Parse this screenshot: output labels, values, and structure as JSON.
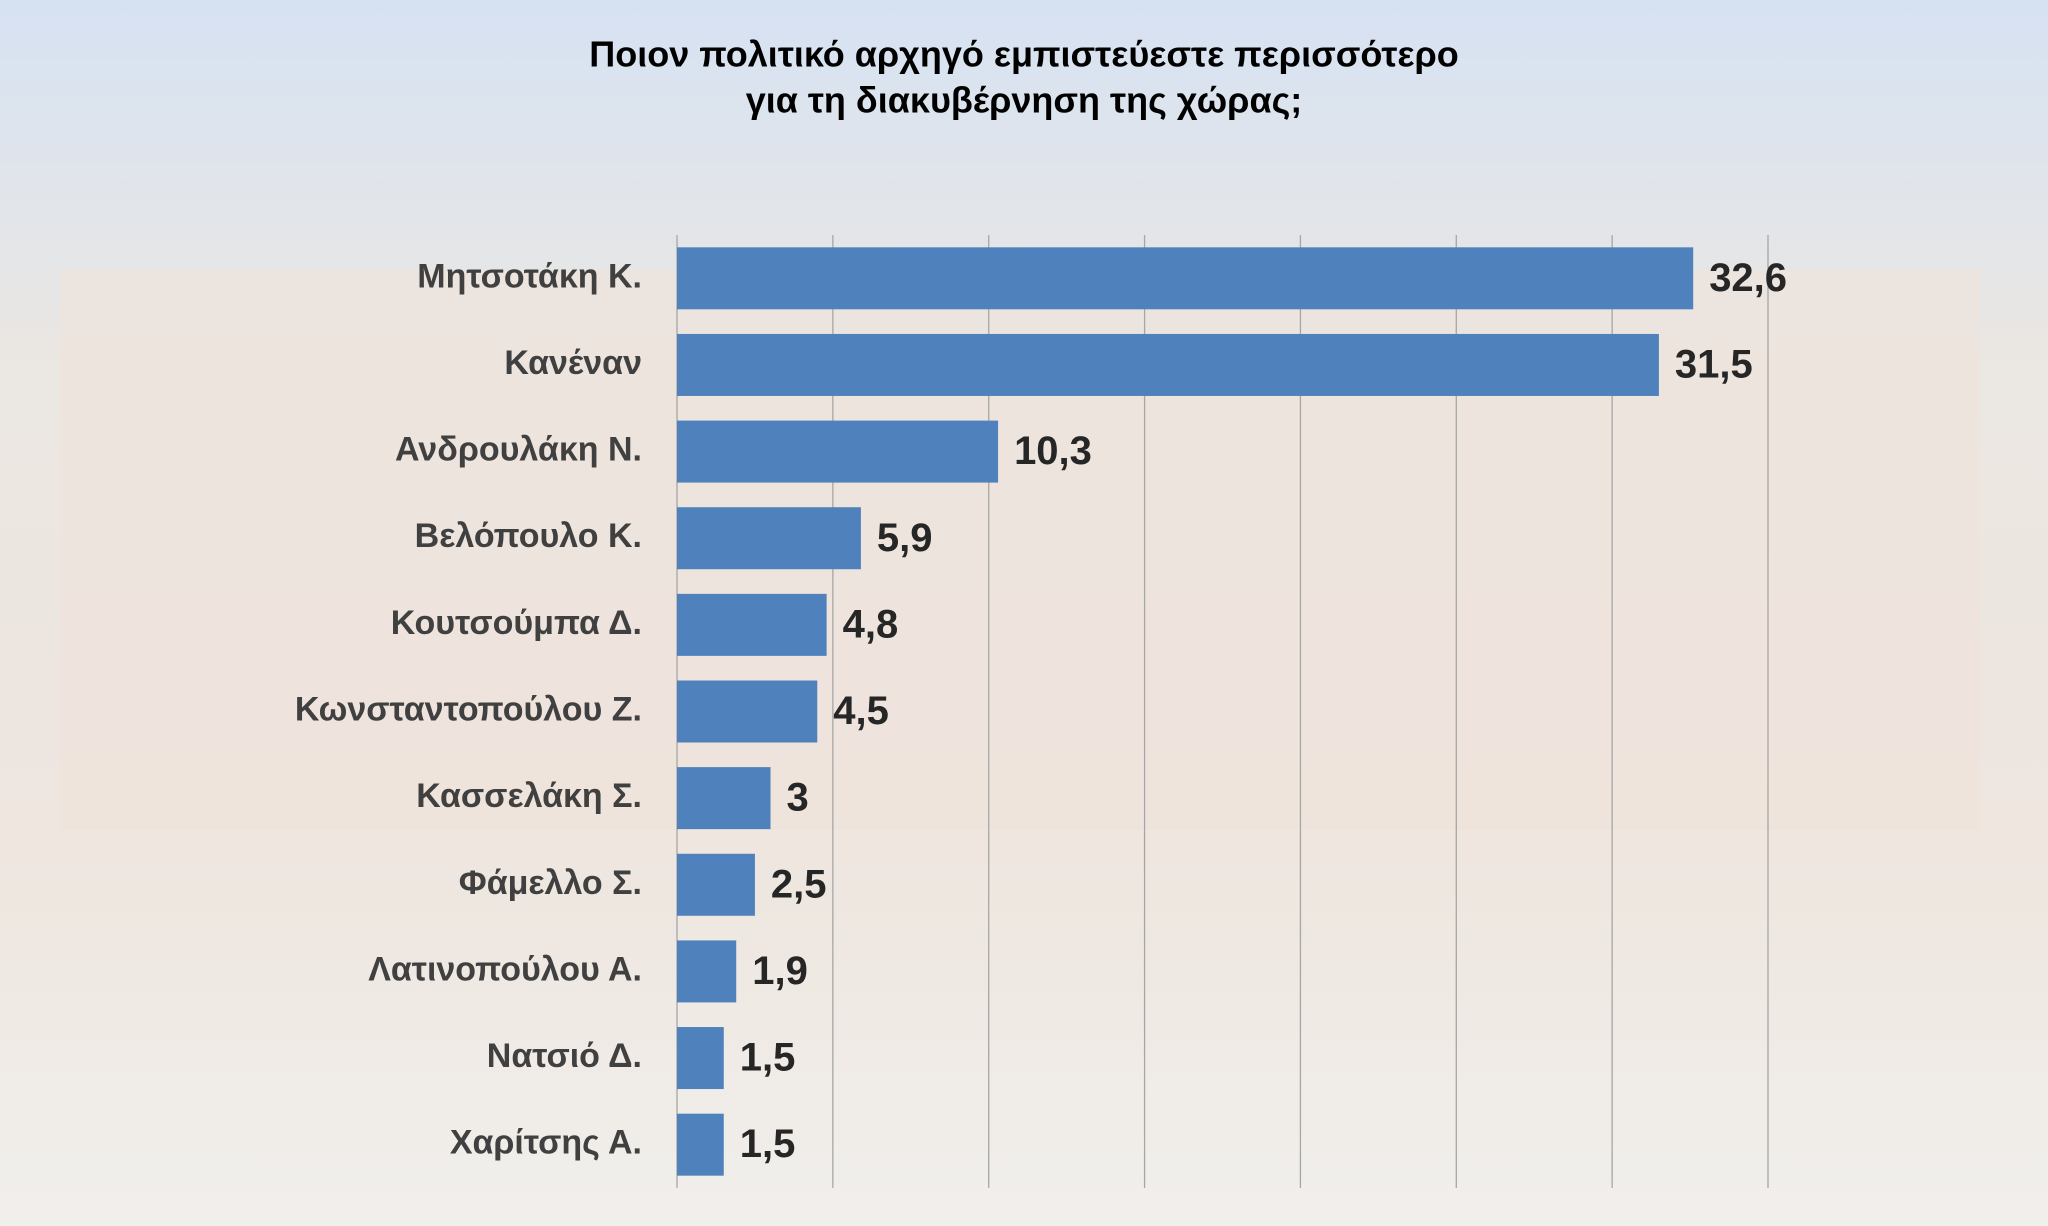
{
  "chart_data": {
    "type": "bar",
    "orientation": "horizontal",
    "title": [
      "Ποιον πολιτικό αρχηγό εμπιστεύεστε περισσότερο",
      "για τη διακυβέρνηση της χώρας;"
    ],
    "categories": [
      "Μητσοτάκη Κ.",
      "Κανέναν",
      "Ανδρουλάκη Ν.",
      "Βελόπουλο Κ.",
      "Κουτσούμπα Δ.",
      "Κωνσταντοπούλου Ζ.",
      "Κασσελάκη Σ.",
      "Φάμελλο Σ.",
      "Λατινοπούλου Α.",
      "Νατσιό Δ.",
      "Χαρίτσης Α."
    ],
    "values": [
      32.6,
      31.5,
      10.3,
      5.9,
      4.8,
      4.5,
      3,
      2.5,
      1.9,
      1.5,
      1.5
    ],
    "value_labels": [
      "32,6",
      "31,5",
      "10,3",
      "5,9",
      "4,8",
      "4,5",
      "3",
      "2,5",
      "1,9",
      "1,5",
      "1,5"
    ],
    "color": "#4f81bd",
    "xlim": [
      0,
      35
    ],
    "xticks": [
      0,
      5,
      10,
      15,
      20,
      25,
      30,
      35
    ],
    "grid": true
  }
}
